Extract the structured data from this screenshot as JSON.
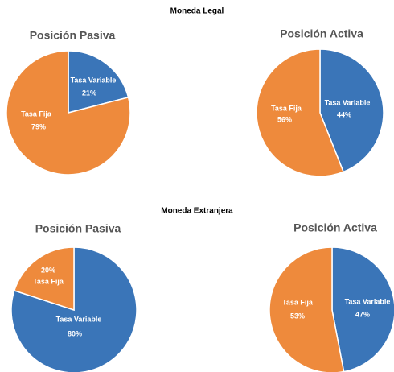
{
  "headings": [
    "Moneda Legal",
    "Moneda Extranjera"
  ],
  "chart_data": [
    {
      "type": "pie",
      "title": "Posición Pasiva",
      "categories": [
        "Tasa Variable",
        "Tasa Fija"
      ],
      "values": [
        21,
        79
      ],
      "value_labels": [
        "21%",
        "79%"
      ],
      "colors": [
        "#3a75b8",
        "#ee8a3c"
      ]
    },
    {
      "type": "pie",
      "title": "Posición Activa",
      "categories": [
        "Tasa Variable",
        "Tasa Fija"
      ],
      "values": [
        44,
        56
      ],
      "value_labels": [
        "44%",
        "56%"
      ],
      "colors": [
        "#3a75b8",
        "#ee8a3c"
      ]
    },
    {
      "type": "pie",
      "title": "Posición Pasiva",
      "categories": [
        "Tasa Variable",
        "Tasa Fija"
      ],
      "values": [
        80,
        20
      ],
      "value_labels": [
        "80%",
        "20%"
      ],
      "colors": [
        "#3a75b8",
        "#ee8a3c"
      ]
    },
    {
      "type": "pie",
      "title": "Posición Activa",
      "categories": [
        "Tasa Variable",
        "Tasa Fija"
      ],
      "values": [
        47,
        53
      ],
      "value_labels": [
        "47%",
        "53%"
      ],
      "colors": [
        "#3a75b8",
        "#ee8a3c"
      ]
    }
  ]
}
